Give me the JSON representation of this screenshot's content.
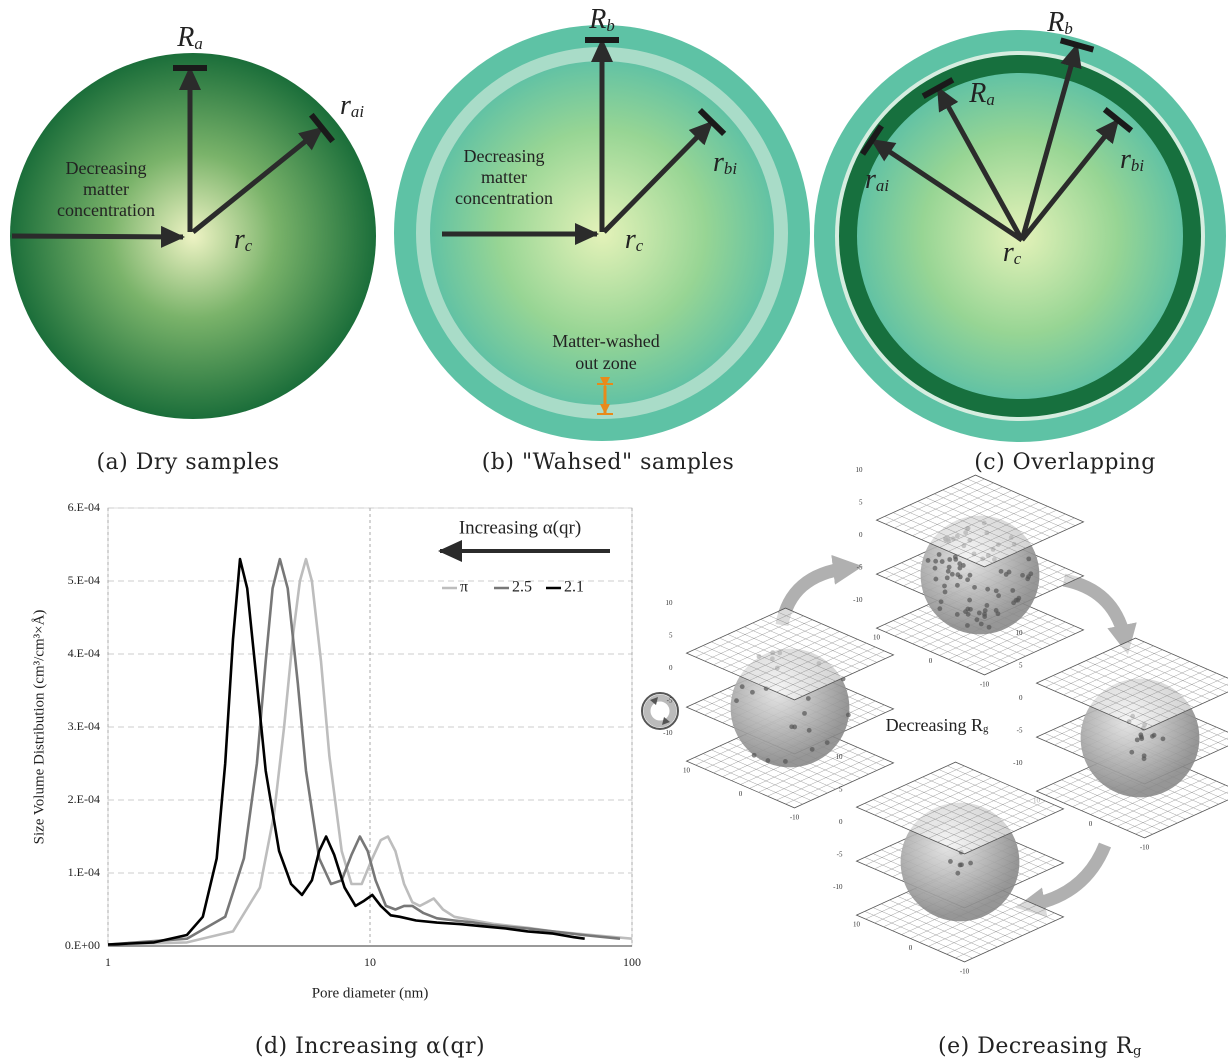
{
  "panels": {
    "a": {
      "caption": "(a) Dry samples",
      "text": [
        "Decreasing",
        "matter",
        "concentration"
      ],
      "labels": [
        [
          "R",
          "a"
        ],
        [
          "r",
          "ai"
        ],
        [
          "r",
          "c"
        ]
      ]
    },
    "b": {
      "caption": "(b) \"Wahsed\" samples",
      "text": [
        "Decreasing",
        "matter",
        "concentration"
      ],
      "labels": [
        [
          "R",
          "b"
        ],
        [
          "r",
          "bi"
        ],
        [
          "r",
          "c"
        ]
      ],
      "zone": [
        "Matter-washed",
        "out zone"
      ]
    },
    "c": {
      "caption": "(c) Overlapping",
      "labels": [
        [
          "R",
          "b"
        ],
        [
          "R",
          "a"
        ],
        [
          "r",
          "ai"
        ],
        [
          "r",
          "bi"
        ],
        [
          "r",
          "c"
        ]
      ]
    },
    "d": {
      "caption": "(d) Increasing  α(qr)"
    },
    "e": {
      "caption": [
        "(e) Decreasing R",
        "g"
      ],
      "center_label": [
        "Decreasing R",
        "g"
      ],
      "axis_ticks": [
        "10",
        "5",
        "0",
        "-5",
        "-10"
      ]
    }
  },
  "chart_data": {
    "type": "line",
    "x_label": "Pore diameter (nm)",
    "y_label": "Size Volume Distribution (cm³/cm³×Å)",
    "annotation": "Increasing  α(qr)",
    "xlim": [
      1,
      100
    ],
    "xticks": [
      1,
      10,
      100
    ],
    "log_x": true,
    "ylim": [
      0,
      0.0006
    ],
    "yticks": [
      {
        "value": 0,
        "label": "0.E+00"
      },
      {
        "value": 0.0001,
        "label": "1.E-04"
      },
      {
        "value": 0.0002,
        "label": "2.E-04"
      },
      {
        "value": 0.0003,
        "label": "3.E-04"
      },
      {
        "value": 0.0004,
        "label": "4.E-04"
      },
      {
        "value": 0.0005,
        "label": "5.E-04"
      },
      {
        "value": 0.0006,
        "label": "6.E-04"
      }
    ],
    "grid": true,
    "legend": "upper right",
    "series": [
      {
        "name": "π",
        "color": "#bdbdbd",
        "x": [
          1,
          2,
          3,
          3.8,
          4.3,
          4.7,
          5.1,
          5.4,
          5.7,
          6.0,
          6.5,
          7.0,
          7.8,
          8.5,
          9.3,
          10.2,
          11,
          11.7,
          12.5,
          13.5,
          14.5,
          15.5,
          16.5,
          17.5,
          19,
          21,
          25,
          30,
          40,
          50,
          70,
          100
        ],
        "values": [
          2e-06,
          5e-06,
          2e-05,
          8e-05,
          0.00018,
          0.0003,
          0.00043,
          0.0005,
          0.00053,
          0.0005,
          0.00039,
          0.00026,
          0.00013,
          8.5e-05,
          8.5e-05,
          0.00012,
          0.000145,
          0.00015,
          0.00013,
          8.5e-05,
          6e-05,
          5.5e-05,
          6e-05,
          6.5e-05,
          5e-05,
          4e-05,
          3.5e-05,
          3e-05,
          2.5e-05,
          2e-05,
          1.5e-05,
          1e-05
        ]
      },
      {
        "name": "2.5",
        "color": "#777777",
        "x": [
          1,
          2,
          2.8,
          3.3,
          3.7,
          4.0,
          4.25,
          4.53,
          4.85,
          5.3,
          5.7,
          6.4,
          7.1,
          7.8,
          8.5,
          9.15,
          9.8,
          10.5,
          11.5,
          12.5,
          13.5,
          14.5,
          16,
          18,
          21,
          25,
          30,
          40,
          50,
          65,
          90
        ],
        "values": [
          2e-06,
          1e-05,
          4e-05,
          0.00012,
          0.00025,
          0.00039,
          0.00049,
          0.00053,
          0.00049,
          0.00036,
          0.00024,
          0.00012,
          8.5e-05,
          9e-05,
          0.000125,
          0.00015,
          0.00013,
          9e-05,
          5.5e-05,
          5e-05,
          5.5e-05,
          5.5e-05,
          4.5e-05,
          3.8e-05,
          3.5e-05,
          3.2e-05,
          2.8e-05,
          2.4e-05,
          2e-05,
          1.5e-05,
          1e-05
        ]
      },
      {
        "name": "2.1",
        "color": "#000000",
        "x": [
          1,
          1.5,
          2,
          2.3,
          2.6,
          2.8,
          3.0,
          3.19,
          3.4,
          3.7,
          4.0,
          4.5,
          5.0,
          5.5,
          6.0,
          6.4,
          6.8,
          7.3,
          8.0,
          8.8,
          9.5,
          10.2,
          11,
          12,
          13,
          15,
          18,
          22,
          27,
          33,
          40,
          50,
          60,
          66
        ],
        "values": [
          2e-06,
          5e-06,
          1.5e-05,
          4e-05,
          0.00012,
          0.00025,
          0.00042,
          0.00053,
          0.00049,
          0.00036,
          0.00024,
          0.00013,
          8.5e-05,
          7e-05,
          9e-05,
          0.00013,
          0.00015,
          0.000125,
          8e-05,
          5.5e-05,
          6.2e-05,
          7e-05,
          5.5e-05,
          4.2e-05,
          4e-05,
          3.5e-05,
          3.2e-05,
          3e-05,
          2.7e-05,
          2.4e-05,
          2e-05,
          1.7e-05,
          1.2e-05,
          1e-05
        ]
      }
    ]
  }
}
